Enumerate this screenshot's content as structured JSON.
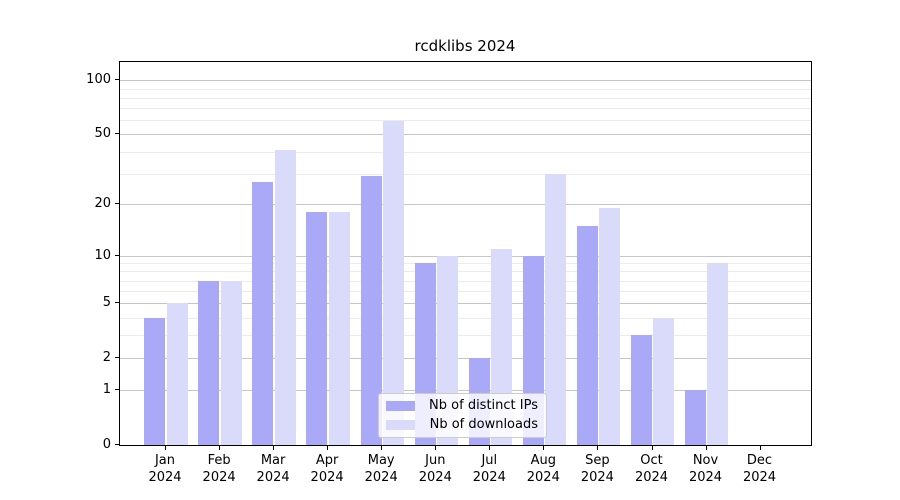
{
  "title": "rcdklibs 2024",
  "chart_data": {
    "type": "bar",
    "title": "rcdklibs 2024",
    "categories": [
      "Jan 2024",
      "Feb 2024",
      "Mar 2024",
      "Apr 2024",
      "May 2024",
      "Jun 2024",
      "Jul 2024",
      "Aug 2024",
      "Sep 2024",
      "Oct 2024",
      "Nov 2024",
      "Dec 2024"
    ],
    "series": [
      {
        "name": "Nb of distinct IPs",
        "color": "#a9a9f8",
        "values": [
          4,
          7,
          27,
          18,
          29,
          9,
          2,
          10,
          15,
          3,
          1,
          0
        ]
      },
      {
        "name": "Nb of downloads",
        "color": "#dadafb",
        "values": [
          5,
          7,
          41,
          18,
          59,
          10,
          11,
          30,
          19,
          4,
          9,
          0
        ]
      }
    ],
    "xlabel": "",
    "ylabel": "",
    "yscale": "log(value+1)",
    "yticks": [
      0,
      1,
      2,
      5,
      10,
      20,
      50,
      100
    ],
    "ylim": [
      0,
      126
    ],
    "grid": "on",
    "legend_position": "lower center"
  }
}
